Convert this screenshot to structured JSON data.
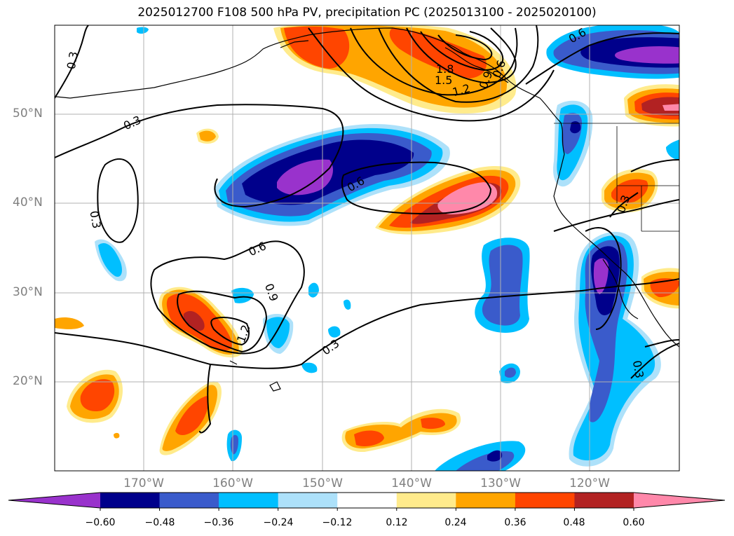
{
  "title": "2025012700 F108 500 hPa PV, precipitation PC (2025013100 - 2025020100)",
  "lat_labels": [
    "50°N",
    "40°N",
    "30°N",
    "20°N"
  ],
  "lon_labels": [
    "170°W",
    "160°W",
    "150°W",
    "140°W",
    "130°W",
    "120°W"
  ],
  "colorbar": {
    "colors": [
      "#9932CC",
      "#00008B",
      "#3A5BCB",
      "#00BFFF",
      "#ADE1FA",
      "#FFFFFF",
      "#FFEB8C",
      "#FFA500",
      "#FF4500",
      "#B22222",
      "#FF88AA"
    ],
    "ticks": [
      "−0.60",
      "−0.48",
      "−0.36",
      "−0.24",
      "−0.12",
      "0.12",
      "0.24",
      "0.36",
      "0.48",
      "0.60"
    ]
  },
  "contour_labels": [
    "0.3",
    "0.3",
    "0.3",
    "0.3",
    "0.3",
    "0.3",
    "0.3",
    "0.6",
    "0.6",
    "0.6",
    "0.9",
    "1.2",
    "1.2",
    "1.5",
    "1.8",
    "0.9",
    "0.6"
  ]
}
